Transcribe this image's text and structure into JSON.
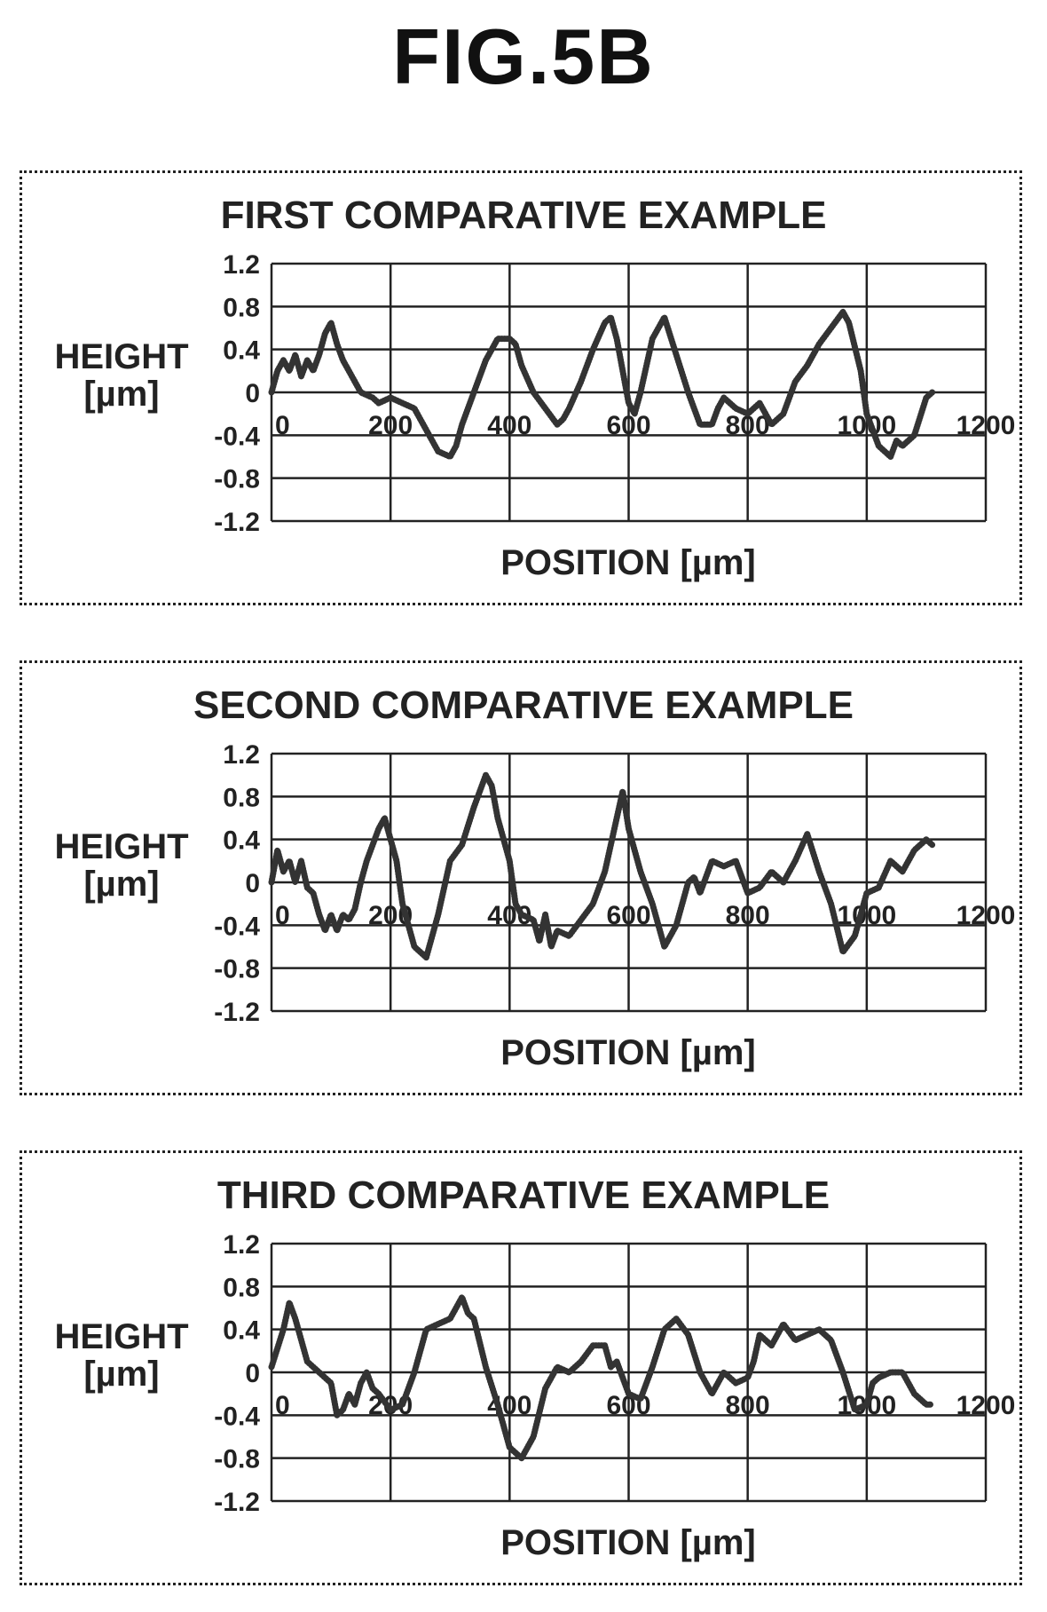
{
  "figure_title": "FIG.5B",
  "chart_data": [
    {
      "type": "line",
      "title": "FIRST COMPARATIVE EXAMPLE",
      "ylabel_line1": "HEIGHT",
      "ylabel_line2": "[µm]",
      "xlabel": "POSITION [µm]",
      "xlim": [
        0,
        1200
      ],
      "ylim": [
        -1.2,
        1.2
      ],
      "x_ticks": [
        "0",
        "200",
        "400",
        "600",
        "800",
        "1000",
        "1200"
      ],
      "y_ticks": [
        "1.2",
        "0.8",
        "0.4",
        "0",
        "-0.4",
        "-0.8",
        "-1.2"
      ],
      "grid": true,
      "series": [
        {
          "x": [
            0,
            10,
            20,
            30,
            40,
            50,
            60,
            70,
            80,
            90,
            100,
            110,
            120,
            130,
            140,
            150,
            170,
            180,
            200,
            220,
            240,
            260,
            280,
            300,
            310,
            320,
            340,
            360,
            380,
            400,
            410,
            420,
            440,
            460,
            480,
            490,
            500,
            520,
            540,
            560,
            570,
            580,
            590,
            600,
            610,
            620,
            640,
            660,
            680,
            700,
            720,
            740,
            750,
            760,
            780,
            800,
            820,
            840,
            860,
            870,
            880,
            900,
            920,
            940,
            960,
            970,
            990,
            1000,
            1020,
            1040,
            1050,
            1060,
            1080,
            1100,
            1110
          ],
          "y": [
            0.0,
            0.2,
            0.3,
            0.2,
            0.35,
            0.15,
            0.3,
            0.2,
            0.35,
            0.55,
            0.65,
            0.45,
            0.3,
            0.2,
            0.1,
            0.0,
            -0.05,
            -0.1,
            -0.05,
            -0.1,
            -0.15,
            -0.35,
            -0.55,
            -0.6,
            -0.5,
            -0.3,
            0.0,
            0.3,
            0.5,
            0.5,
            0.45,
            0.25,
            0.0,
            -0.15,
            -0.3,
            -0.25,
            -0.15,
            0.1,
            0.4,
            0.65,
            0.7,
            0.5,
            0.2,
            -0.1,
            -0.2,
            0.0,
            0.5,
            0.7,
            0.35,
            0.0,
            -0.3,
            -0.3,
            -0.15,
            -0.05,
            -0.15,
            -0.2,
            -0.1,
            -0.3,
            -0.2,
            -0.05,
            0.1,
            0.25,
            0.45,
            0.6,
            0.75,
            0.65,
            0.2,
            -0.2,
            -0.5,
            -0.6,
            -0.45,
            -0.5,
            -0.4,
            -0.05,
            0.0
          ]
        }
      ]
    },
    {
      "type": "line",
      "title": "SECOND COMPARATIVE EXAMPLE",
      "ylabel_line1": "HEIGHT",
      "ylabel_line2": "[µm]",
      "xlabel": "POSITION [µm]",
      "xlim": [
        0,
        1200
      ],
      "ylim": [
        -1.2,
        1.2
      ],
      "x_ticks": [
        "0",
        "200",
        "400",
        "600",
        "800",
        "1000",
        "1200"
      ],
      "y_ticks": [
        "1.2",
        "0.8",
        "0.4",
        "0",
        "-0.4",
        "-0.8",
        "-1.2"
      ],
      "grid": true,
      "series": [
        {
          "x": [
            0,
            10,
            20,
            30,
            40,
            50,
            60,
            70,
            80,
            90,
            100,
            110,
            120,
            130,
            140,
            150,
            160,
            180,
            190,
            200,
            210,
            220,
            240,
            260,
            280,
            300,
            320,
            340,
            360,
            370,
            380,
            400,
            410,
            420,
            440,
            450,
            460,
            470,
            480,
            500,
            520,
            540,
            560,
            580,
            590,
            600,
            610,
            620,
            640,
            660,
            680,
            700,
            710,
            720,
            740,
            760,
            780,
            800,
            820,
            840,
            860,
            880,
            900,
            920,
            940,
            960,
            980,
            1000,
            1020,
            1040,
            1060,
            1080,
            1100,
            1110
          ],
          "y": [
            0.0,
            0.3,
            0.1,
            0.2,
            0.0,
            0.2,
            -0.05,
            -0.1,
            -0.3,
            -0.45,
            -0.3,
            -0.45,
            -0.3,
            -0.35,
            -0.25,
            0.0,
            0.2,
            0.5,
            0.6,
            0.4,
            0.2,
            -0.2,
            -0.6,
            -0.7,
            -0.3,
            0.2,
            0.35,
            0.7,
            1.0,
            0.9,
            0.6,
            0.2,
            -0.2,
            -0.3,
            -0.35,
            -0.55,
            -0.3,
            -0.6,
            -0.45,
            -0.5,
            -0.35,
            -0.2,
            0.1,
            0.6,
            0.85,
            0.5,
            0.3,
            0.1,
            -0.2,
            -0.6,
            -0.4,
            0.0,
            0.05,
            -0.1,
            0.2,
            0.15,
            0.2,
            -0.1,
            -0.05,
            0.1,
            0.0,
            0.2,
            0.45,
            0.1,
            -0.2,
            -0.65,
            -0.5,
            -0.1,
            -0.05,
            0.2,
            0.1,
            0.3,
            0.4,
            0.35
          ]
        }
      ]
    },
    {
      "type": "line",
      "title": "THIRD COMPARATIVE EXAMPLE",
      "ylabel_line1": "HEIGHT",
      "ylabel_line2": "[µm]",
      "xlabel": "POSITION [µm]",
      "xlim": [
        0,
        1200
      ],
      "ylim": [
        -1.2,
        1.2
      ],
      "x_ticks": [
        "0",
        "200",
        "400",
        "600",
        "800",
        "1000",
        "1200"
      ],
      "y_ticks": [
        "1.2",
        "0.8",
        "0.4",
        "0",
        "-0.4",
        "-0.8",
        "-1.2"
      ],
      "grid": true,
      "series": [
        {
          "x": [
            0,
            20,
            30,
            40,
            60,
            80,
            100,
            110,
            120,
            130,
            140,
            150,
            160,
            170,
            180,
            200,
            220,
            240,
            260,
            280,
            300,
            320,
            330,
            340,
            360,
            380,
            400,
            420,
            440,
            460,
            480,
            500,
            520,
            540,
            560,
            570,
            580,
            600,
            620,
            640,
            660,
            680,
            700,
            720,
            740,
            760,
            780,
            800,
            810,
            820,
            840,
            860,
            880,
            900,
            920,
            940,
            960,
            980,
            1000,
            1010,
            1020,
            1040,
            1060,
            1080,
            1100,
            1110
          ],
          "y": [
            0.05,
            0.4,
            0.65,
            0.5,
            0.1,
            0.0,
            -0.1,
            -0.4,
            -0.35,
            -0.2,
            -0.3,
            -0.1,
            0.0,
            -0.15,
            -0.2,
            -0.35,
            -0.3,
            0.0,
            0.4,
            0.45,
            0.5,
            0.7,
            0.55,
            0.5,
            0.05,
            -0.3,
            -0.7,
            -0.8,
            -0.6,
            -0.15,
            0.05,
            0.0,
            0.1,
            0.25,
            0.25,
            0.05,
            0.1,
            -0.2,
            -0.25,
            0.05,
            0.4,
            0.5,
            0.35,
            0.0,
            -0.2,
            0.0,
            -0.1,
            -0.05,
            0.1,
            0.35,
            0.25,
            0.45,
            0.3,
            0.35,
            0.4,
            0.3,
            0.0,
            -0.35,
            -0.3,
            -0.1,
            -0.05,
            0.0,
            0.0,
            -0.2,
            -0.3,
            -0.3
          ]
        }
      ]
    }
  ]
}
